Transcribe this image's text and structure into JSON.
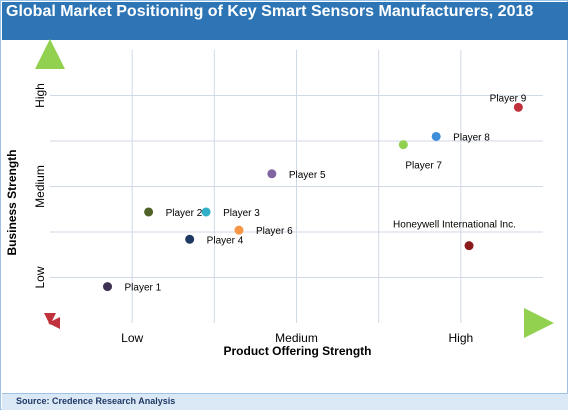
{
  "title": "Global Market Positioning of Key Smart Sensors Manufacturers, 2018",
  "source": "Source: Credence Research Analysis",
  "chart_data": {
    "type": "scatter",
    "xlabel": "Product Offering Strength",
    "ylabel": "Business Strength",
    "x_ticks": [
      "Low",
      "Medium",
      "High"
    ],
    "y_ticks": [
      "Low",
      "Medium",
      "High"
    ],
    "xlim": [
      0,
      3
    ],
    "ylim": [
      0,
      3
    ],
    "grid": true,
    "points": [
      {
        "label": "Player 1",
        "x": 0.35,
        "y": 0.4,
        "color": "#3f3151"
      },
      {
        "label": "Player 2",
        "x": 0.6,
        "y": 1.22,
        "color": "#4f6228"
      },
      {
        "label": "Player 3",
        "x": 0.95,
        "y": 1.22,
        "color": "#31b0c8"
      },
      {
        "label": "Player 4",
        "x": 0.85,
        "y": 0.92,
        "color": "#1f3864"
      },
      {
        "label": "Player 5",
        "x": 1.35,
        "y": 1.64,
        "color": "#8064a2"
      },
      {
        "label": "Player 6",
        "x": 1.15,
        "y": 1.02,
        "color": "#f79646"
      },
      {
        "label": "Player 7",
        "x": 2.15,
        "y": 1.96,
        "color": "#92d050"
      },
      {
        "label": "Player 8",
        "x": 2.35,
        "y": 2.05,
        "color": "#3c8fd8"
      },
      {
        "label": "Player 9",
        "x": 2.85,
        "y": 2.37,
        "color": "#c0313b"
      },
      {
        "label": "Honeywell International Inc.",
        "x": 2.55,
        "y": 0.85,
        "color": "#8b1a1a"
      }
    ]
  }
}
